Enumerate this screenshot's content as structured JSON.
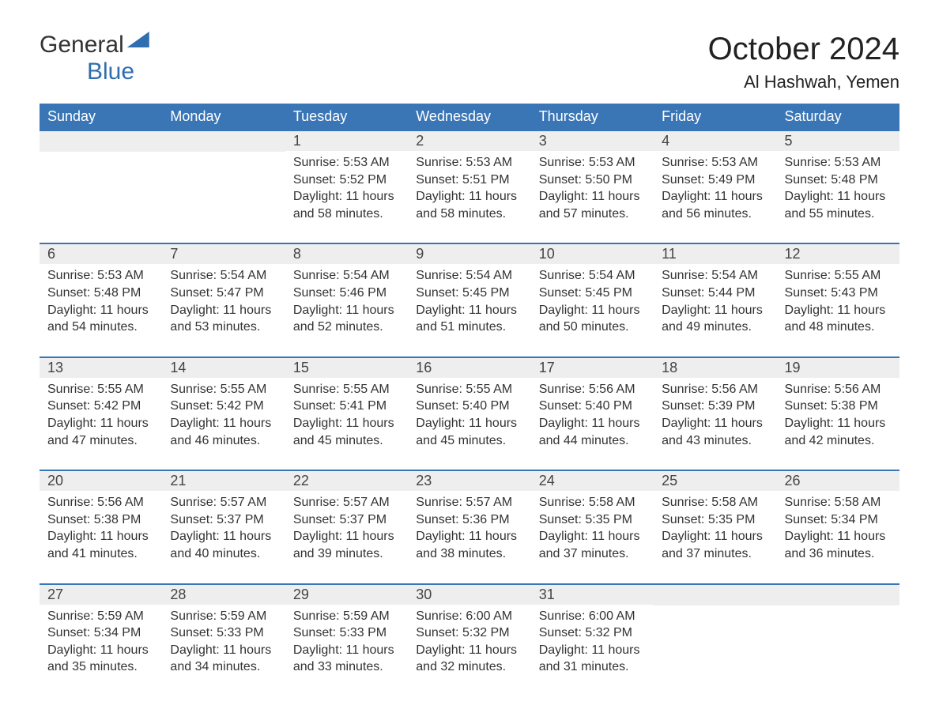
{
  "logo": {
    "word1": "General",
    "word2": "Blue"
  },
  "title": "October 2024",
  "location": "Al Hashwah, Yemen",
  "colors": {
    "header_bg": "#3a76b6",
    "header_text": "#ffffff",
    "daynum_bg": "#eeeeee",
    "body_text": "#333333",
    "row_border": "#3a76b6",
    "brand_blue": "#2f6fb0"
  },
  "weekdays": [
    "Sunday",
    "Monday",
    "Tuesday",
    "Wednesday",
    "Thursday",
    "Friday",
    "Saturday"
  ],
  "weeks": [
    [
      {
        "empty": true
      },
      {
        "empty": true
      },
      {
        "day": "1",
        "sunrise": "5:53 AM",
        "sunset": "5:52 PM",
        "daylight": "11 hours and 58 minutes."
      },
      {
        "day": "2",
        "sunrise": "5:53 AM",
        "sunset": "5:51 PM",
        "daylight": "11 hours and 58 minutes."
      },
      {
        "day": "3",
        "sunrise": "5:53 AM",
        "sunset": "5:50 PM",
        "daylight": "11 hours and 57 minutes."
      },
      {
        "day": "4",
        "sunrise": "5:53 AM",
        "sunset": "5:49 PM",
        "daylight": "11 hours and 56 minutes."
      },
      {
        "day": "5",
        "sunrise": "5:53 AM",
        "sunset": "5:48 PM",
        "daylight": "11 hours and 55 minutes."
      }
    ],
    [
      {
        "day": "6",
        "sunrise": "5:53 AM",
        "sunset": "5:48 PM",
        "daylight": "11 hours and 54 minutes."
      },
      {
        "day": "7",
        "sunrise": "5:54 AM",
        "sunset": "5:47 PM",
        "daylight": "11 hours and 53 minutes."
      },
      {
        "day": "8",
        "sunrise": "5:54 AM",
        "sunset": "5:46 PM",
        "daylight": "11 hours and 52 minutes."
      },
      {
        "day": "9",
        "sunrise": "5:54 AM",
        "sunset": "5:45 PM",
        "daylight": "11 hours and 51 minutes."
      },
      {
        "day": "10",
        "sunrise": "5:54 AM",
        "sunset": "5:45 PM",
        "daylight": "11 hours and 50 minutes."
      },
      {
        "day": "11",
        "sunrise": "5:54 AM",
        "sunset": "5:44 PM",
        "daylight": "11 hours and 49 minutes."
      },
      {
        "day": "12",
        "sunrise": "5:55 AM",
        "sunset": "5:43 PM",
        "daylight": "11 hours and 48 minutes."
      }
    ],
    [
      {
        "day": "13",
        "sunrise": "5:55 AM",
        "sunset": "5:42 PM",
        "daylight": "11 hours and 47 minutes."
      },
      {
        "day": "14",
        "sunrise": "5:55 AM",
        "sunset": "5:42 PM",
        "daylight": "11 hours and 46 minutes."
      },
      {
        "day": "15",
        "sunrise": "5:55 AM",
        "sunset": "5:41 PM",
        "daylight": "11 hours and 45 minutes."
      },
      {
        "day": "16",
        "sunrise": "5:55 AM",
        "sunset": "5:40 PM",
        "daylight": "11 hours and 45 minutes."
      },
      {
        "day": "17",
        "sunrise": "5:56 AM",
        "sunset": "5:40 PM",
        "daylight": "11 hours and 44 minutes."
      },
      {
        "day": "18",
        "sunrise": "5:56 AM",
        "sunset": "5:39 PM",
        "daylight": "11 hours and 43 minutes."
      },
      {
        "day": "19",
        "sunrise": "5:56 AM",
        "sunset": "5:38 PM",
        "daylight": "11 hours and 42 minutes."
      }
    ],
    [
      {
        "day": "20",
        "sunrise": "5:56 AM",
        "sunset": "5:38 PM",
        "daylight": "11 hours and 41 minutes."
      },
      {
        "day": "21",
        "sunrise": "5:57 AM",
        "sunset": "5:37 PM",
        "daylight": "11 hours and 40 minutes."
      },
      {
        "day": "22",
        "sunrise": "5:57 AM",
        "sunset": "5:37 PM",
        "daylight": "11 hours and 39 minutes."
      },
      {
        "day": "23",
        "sunrise": "5:57 AM",
        "sunset": "5:36 PM",
        "daylight": "11 hours and 38 minutes."
      },
      {
        "day": "24",
        "sunrise": "5:58 AM",
        "sunset": "5:35 PM",
        "daylight": "11 hours and 37 minutes."
      },
      {
        "day": "25",
        "sunrise": "5:58 AM",
        "sunset": "5:35 PM",
        "daylight": "11 hours and 37 minutes."
      },
      {
        "day": "26",
        "sunrise": "5:58 AM",
        "sunset": "5:34 PM",
        "daylight": "11 hours and 36 minutes."
      }
    ],
    [
      {
        "day": "27",
        "sunrise": "5:59 AM",
        "sunset": "5:34 PM",
        "daylight": "11 hours and 35 minutes."
      },
      {
        "day": "28",
        "sunrise": "5:59 AM",
        "sunset": "5:33 PM",
        "daylight": "11 hours and 34 minutes."
      },
      {
        "day": "29",
        "sunrise": "5:59 AM",
        "sunset": "5:33 PM",
        "daylight": "11 hours and 33 minutes."
      },
      {
        "day": "30",
        "sunrise": "6:00 AM",
        "sunset": "5:32 PM",
        "daylight": "11 hours and 32 minutes."
      },
      {
        "day": "31",
        "sunrise": "6:00 AM",
        "sunset": "5:32 PM",
        "daylight": "11 hours and 31 minutes."
      },
      {
        "empty": true
      },
      {
        "empty": true
      }
    ]
  ],
  "labels": {
    "sunrise": "Sunrise: ",
    "sunset": "Sunset: ",
    "daylight": "Daylight: "
  }
}
